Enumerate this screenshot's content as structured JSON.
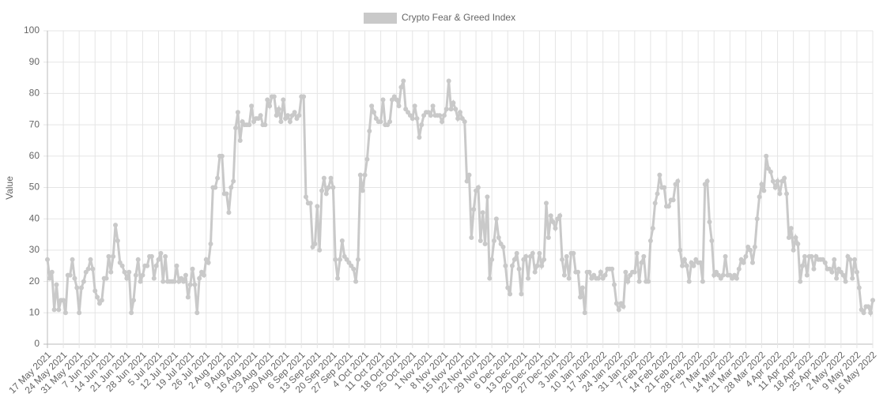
{
  "chart_data": {
    "type": "line",
    "y_label": "Value",
    "categories": [
      "17 May 2021",
      null,
      null,
      null,
      null,
      null,
      null,
      "24 May 2021",
      null,
      null,
      null,
      null,
      null,
      null,
      "31 May 2021",
      null,
      null,
      null,
      null,
      null,
      null,
      "7 Jun 2021",
      null,
      null,
      null,
      null,
      null,
      null,
      "14 Jun 2021",
      null,
      null,
      null,
      null,
      null,
      null,
      "21 Jun 2021",
      null,
      null,
      null,
      null,
      null,
      null,
      "28 Jun 2021",
      null,
      null,
      null,
      null,
      null,
      null,
      "5 Jul 2021",
      null,
      null,
      null,
      null,
      null,
      null,
      "12 Jul 2021",
      null,
      null,
      null,
      null,
      null,
      null,
      "19 Jul 2021",
      null,
      null,
      null,
      null,
      null,
      null,
      "26 Jul 2021",
      null,
      null,
      null,
      null,
      null,
      null,
      "2 Aug 2021",
      null,
      null,
      null,
      null,
      null,
      null,
      "9 Aug 2021",
      null,
      null,
      null,
      null,
      null,
      null,
      "16 Aug 2021",
      null,
      null,
      null,
      null,
      null,
      null,
      "23 Aug 2021",
      null,
      null,
      null,
      null,
      null,
      null,
      "30 Aug 2021",
      null,
      null,
      null,
      null,
      null,
      null,
      "6 Sep 2021",
      null,
      null,
      null,
      null,
      null,
      null,
      "13 Sep 2021",
      null,
      null,
      null,
      null,
      null,
      null,
      "20 Sep 2021",
      null,
      null,
      null,
      null,
      null,
      null,
      "27 Sep 2021",
      null,
      null,
      null,
      null,
      null,
      null,
      "4 Oct 2021",
      null,
      null,
      null,
      null,
      null,
      null,
      "11 Oct 2021",
      null,
      null,
      null,
      null,
      null,
      null,
      "18 Oct 2021",
      null,
      null,
      null,
      null,
      null,
      null,
      "25 Oct 2021",
      null,
      null,
      null,
      null,
      null,
      null,
      "1 Nov 2021",
      null,
      null,
      null,
      null,
      null,
      null,
      "8 Nov 2021",
      null,
      null,
      null,
      null,
      null,
      null,
      "15 Nov 2021",
      null,
      null,
      null,
      null,
      null,
      null,
      "22 Nov 2021",
      null,
      null,
      null,
      null,
      null,
      null,
      "29 Nov 2021",
      null,
      null,
      null,
      null,
      null,
      null,
      "6 Dec 2021",
      null,
      null,
      null,
      null,
      null,
      null,
      "13 Dec 2021",
      null,
      null,
      null,
      null,
      null,
      null,
      "20 Dec 2021",
      null,
      null,
      null,
      null,
      null,
      null,
      "27 Dec 2021",
      null,
      null,
      null,
      null,
      null,
      null,
      "3 Jan 2022",
      null,
      null,
      null,
      null,
      null,
      null,
      "10 Jan 2022",
      null,
      null,
      null,
      null,
      null,
      null,
      "17 Jan 2022",
      null,
      null,
      null,
      null,
      null,
      null,
      "24 Jan 2022",
      null,
      null,
      null,
      null,
      null,
      null,
      "31 Jan 2022",
      null,
      null,
      null,
      null,
      null,
      null,
      "7 Feb 2022",
      null,
      null,
      null,
      null,
      null,
      null,
      "14 Feb 2022",
      null,
      null,
      null,
      null,
      null,
      null,
      "21 Feb 2022",
      null,
      null,
      null,
      null,
      null,
      null,
      "28 Feb 2022",
      null,
      null,
      null,
      null,
      null,
      null,
      "7 Mar 2022",
      null,
      null,
      null,
      null,
      null,
      null,
      "14 Mar 2022",
      null,
      null,
      null,
      null,
      null,
      null,
      "21 Mar 2022",
      null,
      null,
      null,
      null,
      null,
      null,
      "28 Mar 2022",
      null,
      null,
      null,
      null,
      null,
      null,
      "4 Apr 2022",
      null,
      null,
      null,
      null,
      null,
      null,
      "11 Apr 2022",
      null,
      null,
      null,
      null,
      null,
      null,
      "18 Apr 2022",
      null,
      null,
      null,
      null,
      null,
      null,
      "25 Apr 2022",
      null,
      null,
      null,
      null,
      null,
      null,
      "2 May 2022",
      null,
      null,
      null,
      null,
      null,
      null,
      "9 May 2022",
      null,
      null,
      null,
      null,
      null,
      null,
      "16 May 2022"
    ],
    "series": [
      {
        "name": "Crypto Fear & Greed Index",
        "color": "#c9c9c9",
        "values": [
          27,
          21,
          23,
          11,
          19,
          11,
          14,
          14,
          10,
          22,
          22,
          27,
          21,
          18,
          10,
          18,
          20,
          23,
          24,
          27,
          24,
          17,
          15,
          13,
          14,
          21,
          21,
          28,
          23,
          28,
          38,
          33,
          26,
          25,
          23,
          21,
          23,
          10,
          14,
          22,
          27,
          20,
          22,
          25,
          25,
          28,
          28,
          21,
          25,
          27,
          29,
          20,
          28,
          20,
          20,
          20,
          20,
          25,
          20,
          21,
          20,
          22,
          15,
          19,
          24,
          19,
          10,
          21,
          23,
          22,
          27,
          26,
          32,
          50,
          50,
          53,
          60,
          60,
          48,
          48,
          42,
          50,
          52,
          69,
          74,
          65,
          71,
          70,
          70,
          70,
          76,
          71,
          72,
          72,
          73,
          70,
          70,
          78,
          76,
          79,
          79,
          73,
          75,
          71,
          78,
          72,
          73,
          71,
          73,
          74,
          72,
          73,
          79,
          79,
          47,
          45,
          45,
          31,
          32,
          44,
          30,
          49,
          53,
          48,
          50,
          53,
          50,
          27,
          21,
          27,
          33,
          28,
          27,
          26,
          25,
          24,
          20,
          27,
          54,
          49,
          54,
          59,
          68,
          76,
          74,
          72,
          71,
          71,
          78,
          70,
          70,
          71,
          78,
          79,
          78,
          76,
          82,
          84,
          75,
          74,
          73,
          72,
          76,
          72,
          66,
          70,
          73,
          74,
          74,
          73,
          76,
          73,
          73,
          73,
          71,
          73,
          75,
          84,
          75,
          77,
          75,
          72,
          74,
          72,
          71,
          52,
          54,
          34,
          43,
          49,
          50,
          33,
          42,
          32,
          47,
          21,
          27,
          33,
          40,
          34,
          32,
          31,
          25,
          18,
          16,
          25,
          27,
          29,
          24,
          16,
          27,
          28,
          21,
          28,
          29,
          23,
          25,
          29,
          25,
          27,
          45,
          34,
          41,
          39,
          37,
          40,
          41,
          27,
          22,
          28,
          21,
          29,
          29,
          23,
          23,
          15,
          18,
          10,
          23,
          23,
          21,
          22,
          21,
          21,
          23,
          21,
          22,
          24,
          24,
          24,
          19,
          13,
          11,
          13,
          12,
          23,
          20,
          22,
          23,
          23,
          29,
          20,
          26,
          28,
          20,
          20,
          33,
          37,
          45,
          48,
          54,
          50,
          50,
          44,
          44,
          46,
          46,
          51,
          52,
          30,
          25,
          27,
          25,
          20,
          26,
          25,
          27,
          26,
          26,
          20,
          51,
          52,
          39,
          33,
          22,
          23,
          22,
          21,
          22,
          28,
          22,
          22,
          21,
          22,
          21,
          24,
          27,
          26,
          28,
          31,
          30,
          26,
          31,
          40,
          47,
          51,
          49,
          60,
          56,
          55,
          52,
          50,
          52,
          48,
          52,
          53,
          48,
          34,
          37,
          30,
          34,
          32,
          20,
          25,
          28,
          22,
          28,
          28,
          24,
          28,
          27,
          27,
          27,
          26,
          24,
          24,
          23,
          27,
          21,
          24,
          23,
          22,
          20,
          28,
          27,
          21,
          27,
          23,
          18,
          11,
          10,
          12,
          12,
          10,
          14
        ]
      }
    ],
    "ylim": [
      0,
      100
    ],
    "yticks": [
      0,
      10,
      20,
      30,
      40,
      50,
      60,
      70,
      80,
      90,
      100
    ],
    "grid": true,
    "legend": "top"
  }
}
